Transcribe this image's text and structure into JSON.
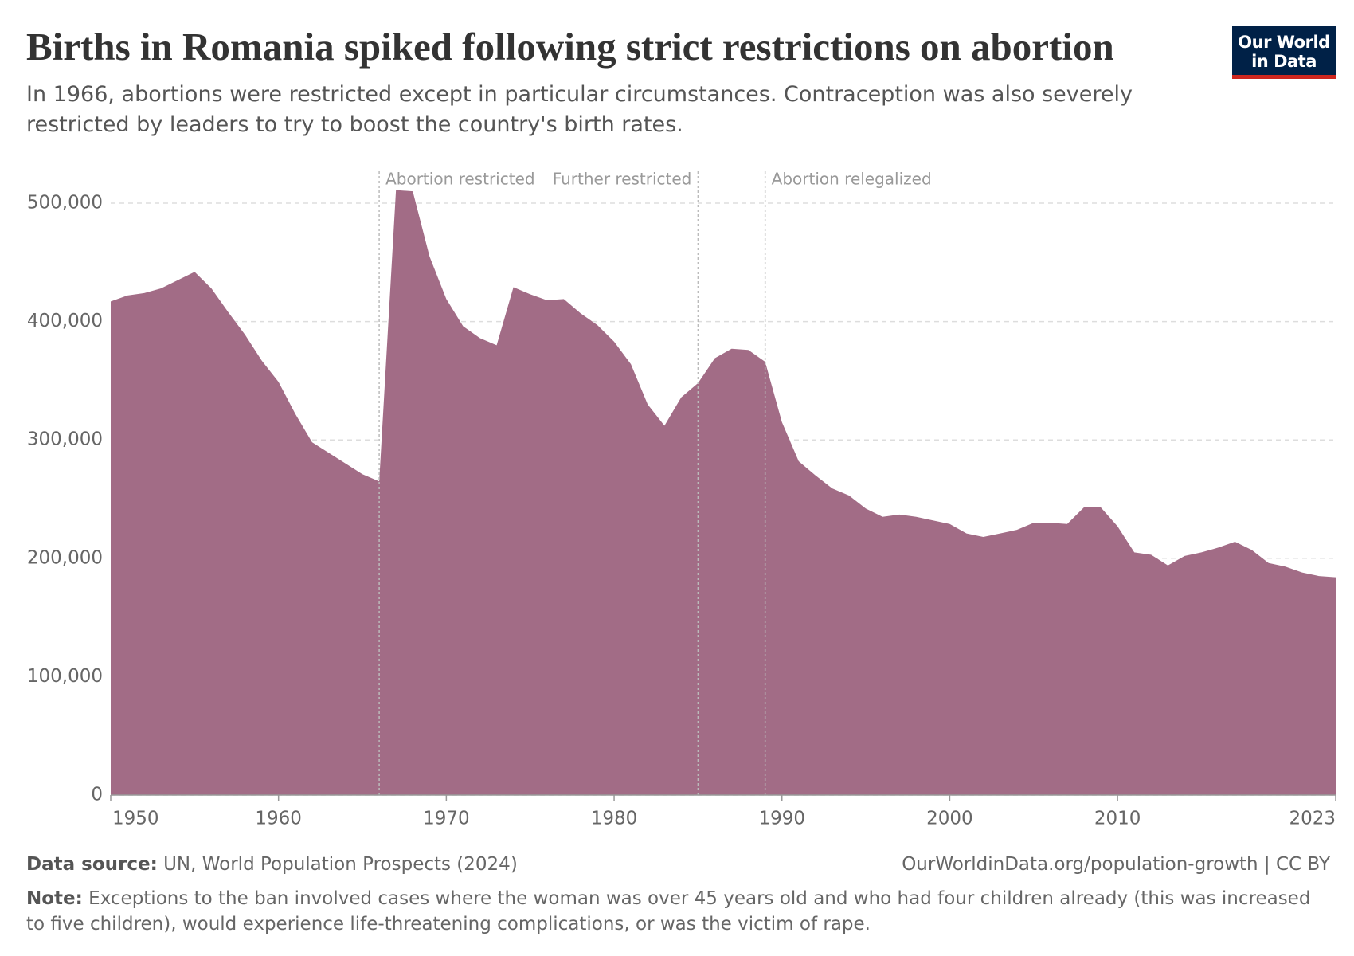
{
  "chart_data": {
    "type": "area",
    "title": "Births in Romania spiked following strict restrictions on abortion",
    "subtitle": "In 1966, abortions were restricted except in particular circumstances. Contraception was also severely restricted by leaders to try to boost the country's birth rates.",
    "logo": [
      "Our World",
      "in Data"
    ],
    "x": [
      1950,
      1951,
      1952,
      1953,
      1954,
      1955,
      1956,
      1957,
      1958,
      1959,
      1960,
      1961,
      1962,
      1963,
      1964,
      1965,
      1966,
      1967,
      1968,
      1969,
      1970,
      1971,
      1972,
      1973,
      1974,
      1975,
      1976,
      1977,
      1978,
      1979,
      1980,
      1981,
      1982,
      1983,
      1984,
      1985,
      1986,
      1987,
      1988,
      1989,
      1990,
      1991,
      1992,
      1993,
      1994,
      1995,
      1996,
      1997,
      1998,
      1999,
      2000,
      2001,
      2002,
      2003,
      2004,
      2005,
      2006,
      2007,
      2008,
      2009,
      2010,
      2011,
      2012,
      2013,
      2014,
      2015,
      2016,
      2017,
      2018,
      2019,
      2020,
      2021,
      2022,
      2023
    ],
    "values": [
      417000,
      422000,
      424000,
      428000,
      435000,
      442000,
      428000,
      408000,
      389000,
      367000,
      349000,
      322000,
      298000,
      289000,
      280000,
      271000,
      265000,
      511000,
      510000,
      455000,
      419000,
      396000,
      386000,
      380000,
      429000,
      423000,
      418000,
      419000,
      407000,
      397000,
      383000,
      364000,
      330000,
      312000,
      336000,
      348000,
      369000,
      377000,
      376000,
      366000,
      315000,
      282000,
      270000,
      259000,
      253000,
      242000,
      235000,
      237000,
      235000,
      232000,
      229000,
      221000,
      218000,
      221000,
      224000,
      230000,
      230000,
      229000,
      243000,
      243000,
      227000,
      205000,
      203000,
      194000,
      202000,
      205000,
      209000,
      214000,
      207000,
      196000,
      193000,
      188000,
      185000,
      184000
    ],
    "color": "#a26c86",
    "xlim": [
      1950,
      2023
    ],
    "xticks": [
      1950,
      1960,
      1970,
      1980,
      1990,
      2000,
      2010,
      2023
    ],
    "ylim": [
      0,
      500000
    ],
    "yticks": [
      0,
      {
        "value": 100000,
        "label": "100,000"
      },
      {
        "value": 200000,
        "label": "200,000"
      },
      {
        "value": 300000,
        "label": "300,000"
      },
      {
        "value": 400000,
        "label": "400,000"
      },
      {
        "value": 500000,
        "label": "500,000"
      }
    ],
    "grid": true,
    "annotations": [
      {
        "x": 1966,
        "label": "Abortion restricted"
      },
      {
        "x": 1985,
        "label": "Further restricted"
      },
      {
        "x": 1989,
        "label": "Abortion relegalized"
      }
    ],
    "source_label": "Data source:",
    "source": "UN, World Population Prospects (2024)",
    "url": "OurWorldinData.org/population-growth | CC BY",
    "note_label": "Note:",
    "note": "Exceptions to the ban involved cases where the woman was over 45 years old and who had four children already (this was increased to five children), would experience life-threatening complications, or was the victim of rape."
  }
}
